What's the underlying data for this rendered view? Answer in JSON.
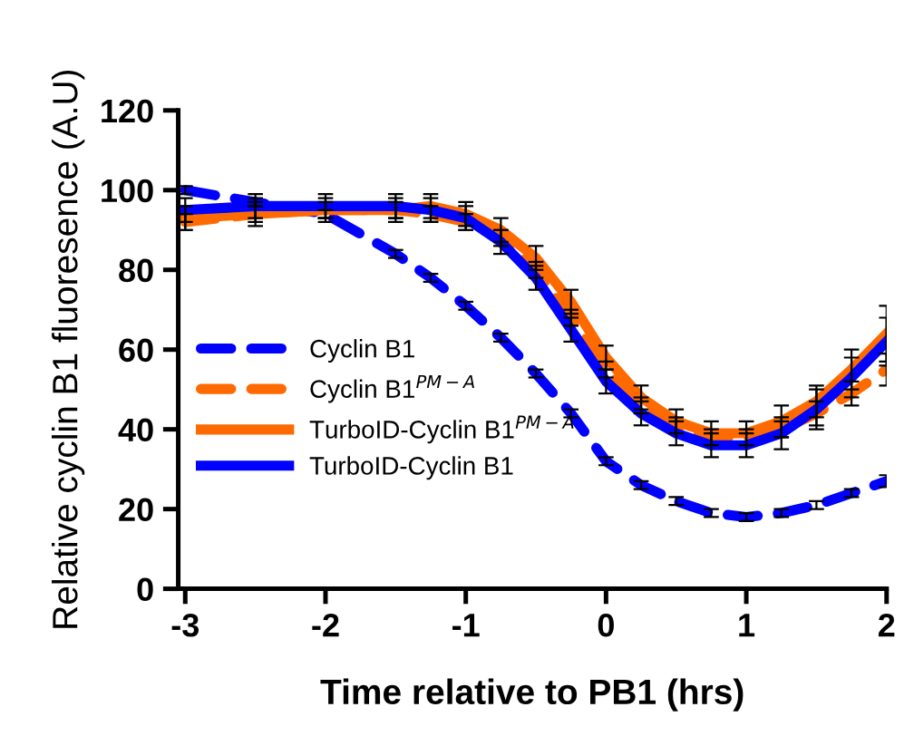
{
  "chart_data": {
    "type": "line",
    "xlabel": "Time relative to PB1 (hrs)",
    "ylabel": "Relative cyclin B1 fluoresence (A.U)",
    "x": [
      -3,
      -2.5,
      -2,
      -1.5,
      -1.25,
      -1,
      -0.75,
      -0.5,
      -0.25,
      0,
      0.25,
      0.5,
      0.75,
      1,
      1.25,
      1.5,
      1.75,
      2
    ],
    "series": [
      {
        "name": "Cyclin B1",
        "color": "#0000ff",
        "line_style": "dashed",
        "values": [
          100,
          97,
          94,
          84,
          78,
          71,
          63,
          54,
          44,
          32,
          26,
          22,
          19,
          18,
          19,
          21,
          24,
          27
        ],
        "errors": [
          1,
          1,
          1,
          1,
          1,
          1,
          1,
          1,
          1,
          1,
          1,
          1,
          1,
          1,
          1,
          1,
          1,
          1.5
        ]
      },
      {
        "name": "Cyclin B1$^{PM−A}$",
        "color": "#ff6a00",
        "line_style": "dashed",
        "values": [
          92,
          94,
          95,
          95,
          94,
          92,
          88,
          80,
          68,
          55,
          46,
          41,
          38,
          38,
          40,
          44,
          49,
          55
        ],
        "errors": [
          2,
          2,
          2,
          2,
          2,
          2,
          2,
          2,
          2,
          2,
          2,
          2,
          2,
          2,
          2,
          3,
          3,
          4
        ]
      },
      {
        "name": "TurboID-Cyclin B1$^{PM−A}$",
        "color": "#ff6a00",
        "line_style": "solid",
        "values": [
          93,
          94,
          95,
          95,
          96,
          94,
          90,
          83,
          72,
          58,
          48,
          42,
          39,
          39,
          42,
          47,
          55,
          64
        ],
        "errors": [
          3,
          3,
          3,
          3,
          3,
          3,
          3,
          3,
          3,
          3,
          3,
          3,
          3,
          3,
          4,
          4,
          5,
          7
        ]
      },
      {
        "name": "TurboID-Cyclin B1",
        "color": "#0000ff",
        "line_style": "solid",
        "values": [
          95,
          96,
          96,
          96,
          95,
          93,
          87,
          78,
          65,
          52,
          44,
          39,
          36,
          36,
          39,
          45,
          53,
          62
        ],
        "errors": [
          3,
          3,
          3,
          3,
          3,
          3,
          3,
          3,
          3,
          3,
          3,
          3,
          3,
          3,
          4,
          5,
          5,
          6
        ]
      }
    ],
    "xlim": [
      -3.05,
      2
    ],
    "ylim": [
      0,
      120
    ],
    "xticks": [
      -3,
      -2,
      -1,
      0,
      1,
      2
    ],
    "yticks": [
      0,
      20,
      40,
      60,
      80,
      100,
      120
    ],
    "grid": false,
    "legend": "center left",
    "marker": "none"
  }
}
